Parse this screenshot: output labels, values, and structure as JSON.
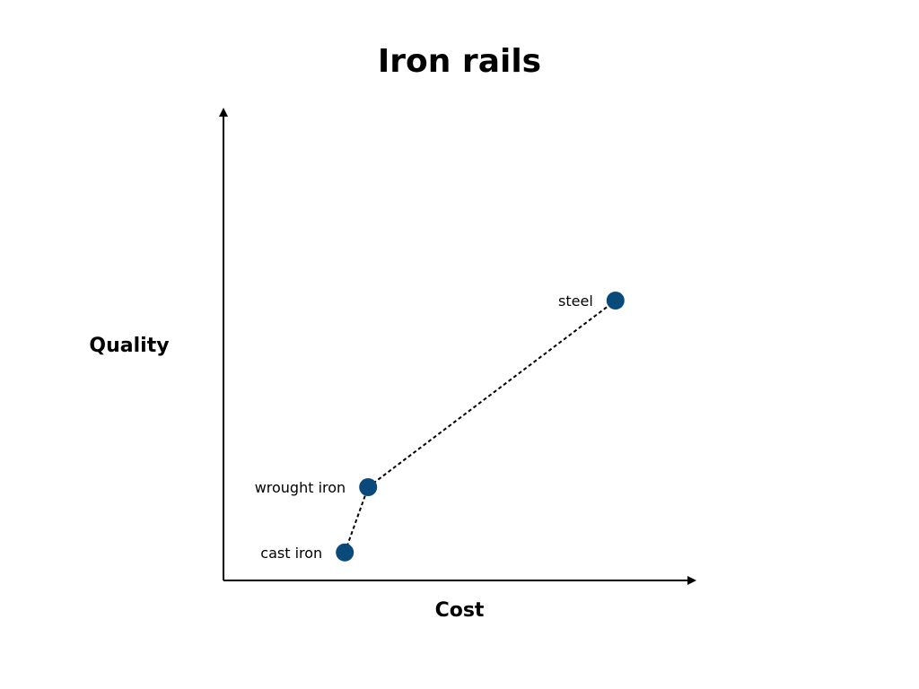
{
  "chart_data": {
    "type": "scatter",
    "title": "Iron rails",
    "xlabel": "Cost",
    "ylabel": "Quality",
    "xlim": [
      0,
      100
    ],
    "ylim": [
      0,
      100
    ],
    "grid": false,
    "ticks": false,
    "connected": true,
    "line_style": "dotted",
    "marker_color": "#0a4a7a",
    "line_color": "#000000",
    "points": [
      {
        "label": "cast iron",
        "x": 26,
        "y": 6
      },
      {
        "label": "wrought iron",
        "x": 31,
        "y": 20
      },
      {
        "label": "steel",
        "x": 84,
        "y": 60
      }
    ]
  }
}
